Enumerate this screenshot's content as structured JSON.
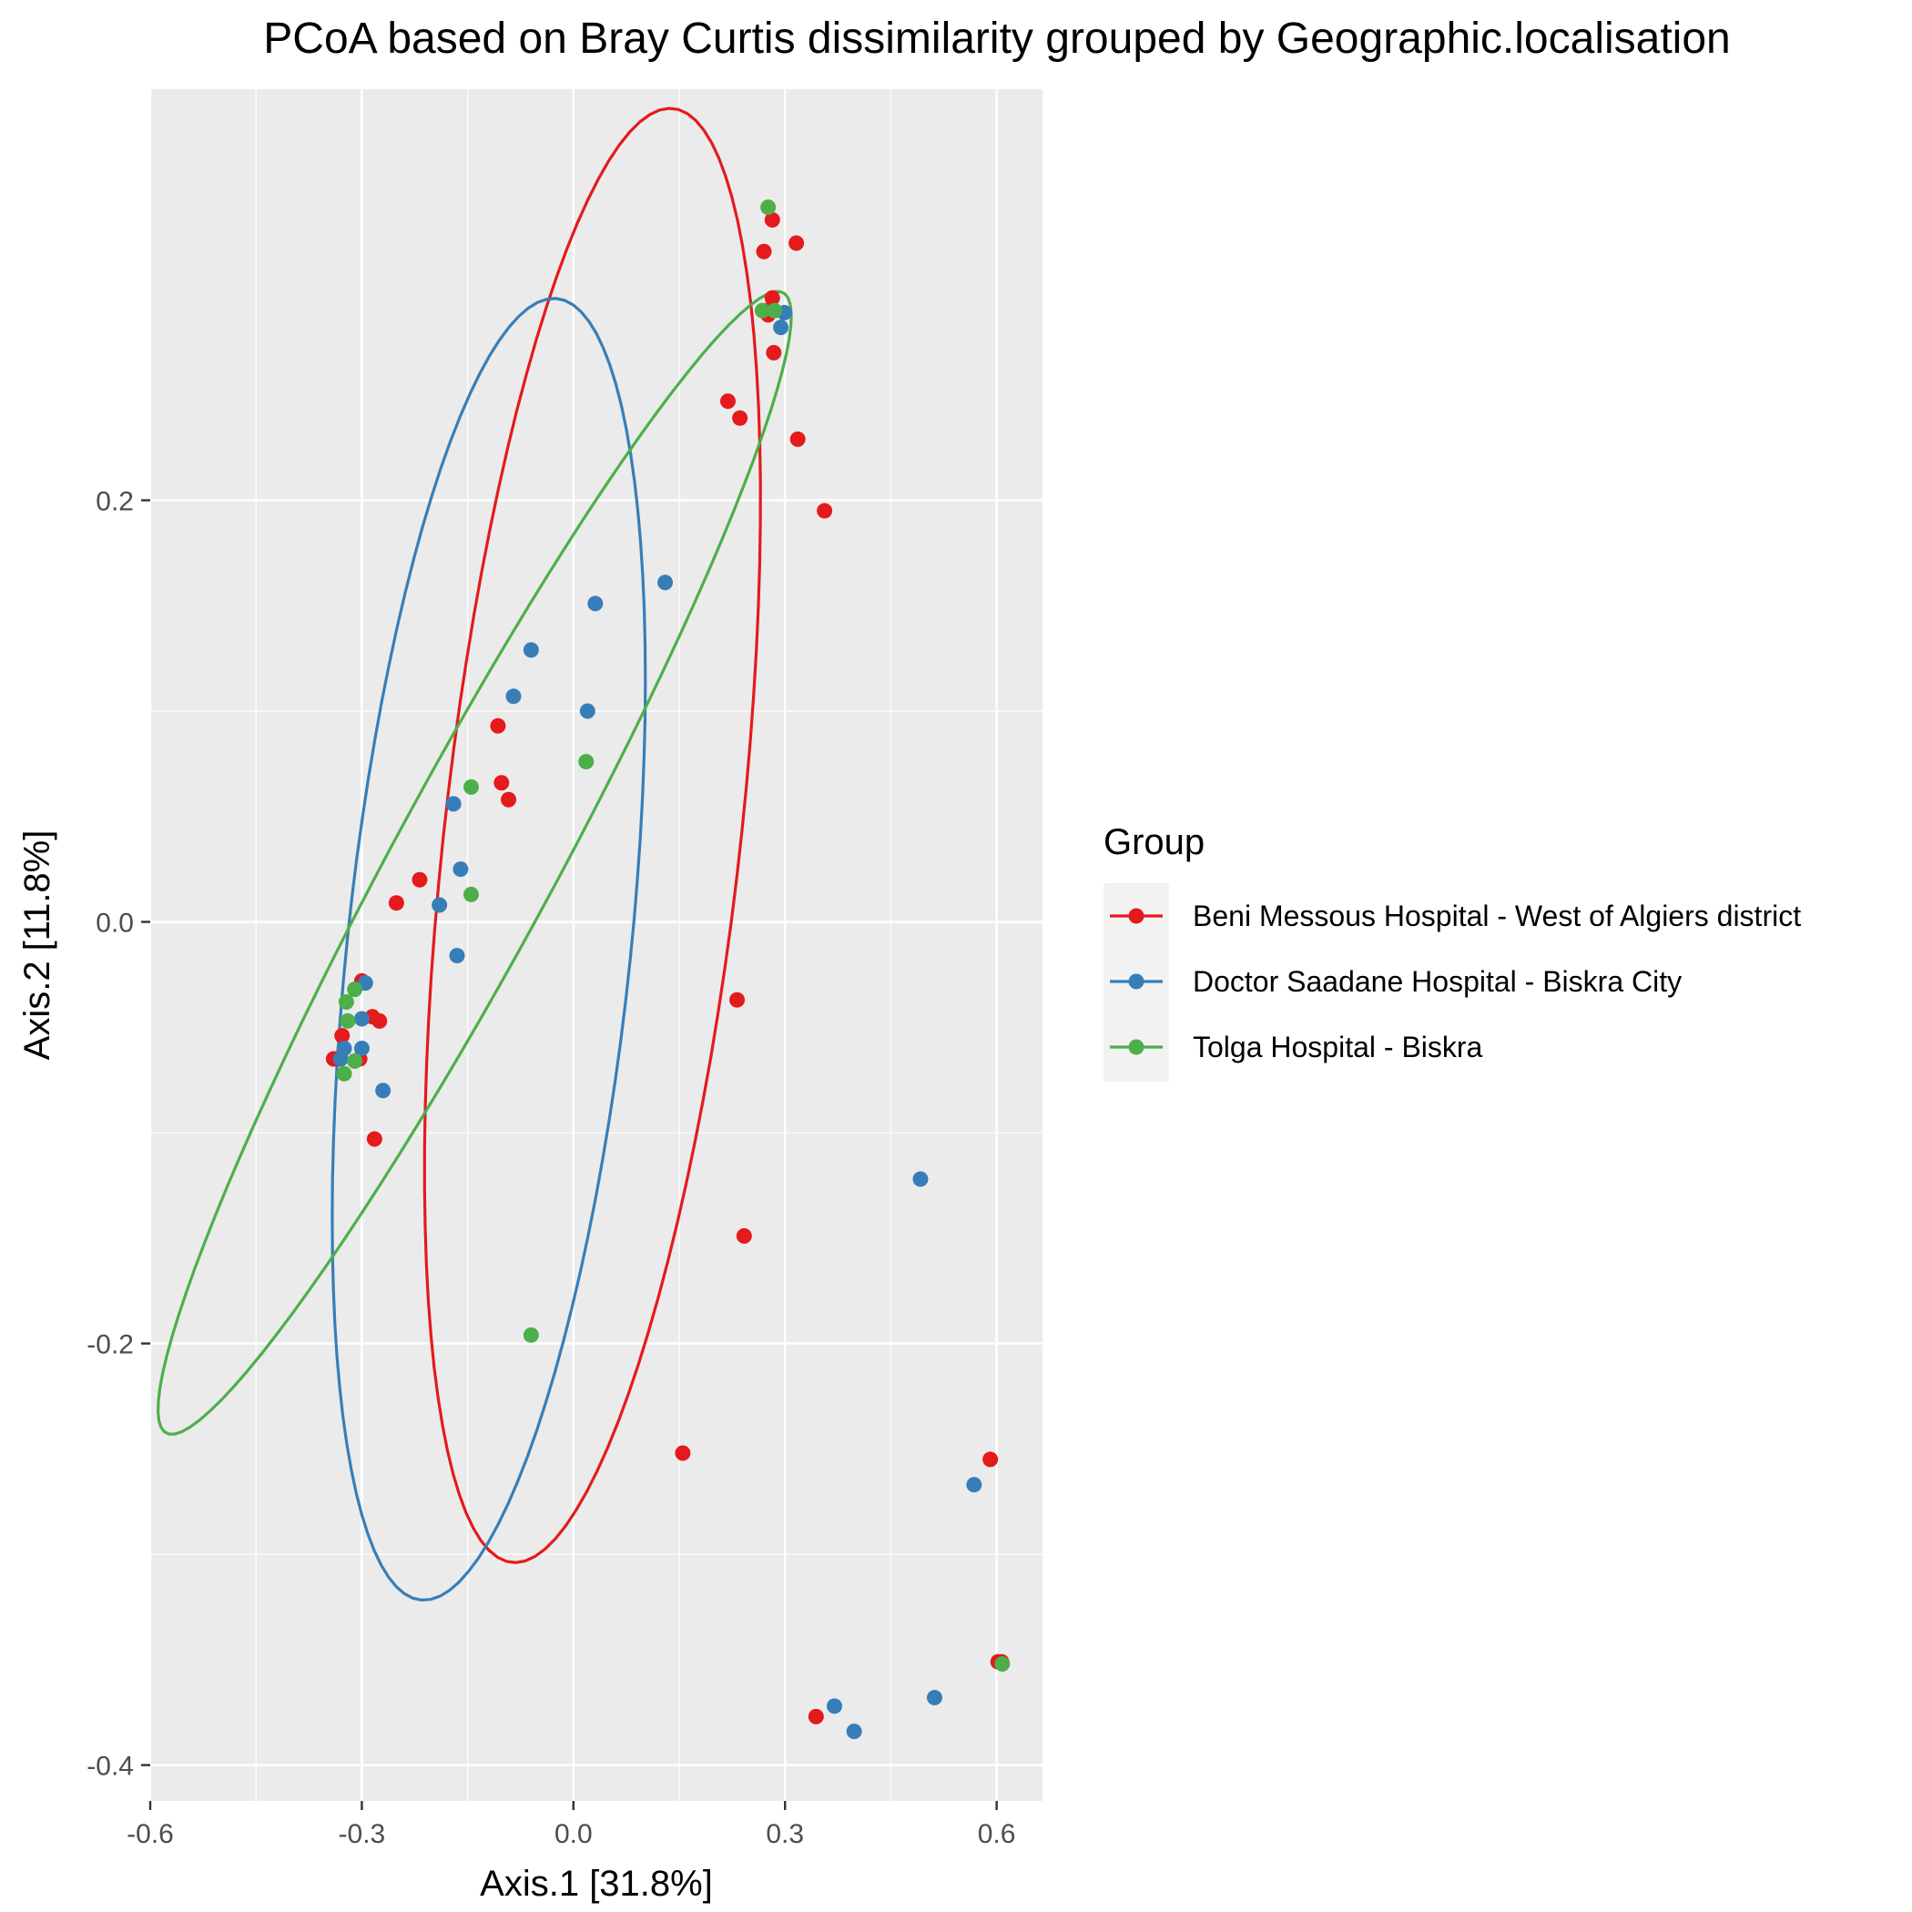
{
  "chart_data": {
    "type": "scatter",
    "title": "PCoA based on Bray Curtis dissimilarity grouped by Geographic.localisation",
    "xlabel": "Axis.1   [31.8%]",
    "ylabel": "Axis.2   [11.8%]",
    "xlim": [
      -0.6,
      0.665
    ],
    "ylim": [
      -0.417,
      0.395
    ],
    "x_ticks": [
      -0.6,
      -0.3,
      0.0,
      0.3,
      0.6
    ],
    "x_tick_labels": [
      "-0.6",
      "-0.3",
      "0.0",
      "0.3",
      "0.6"
    ],
    "y_ticks": [
      -0.4,
      -0.2,
      0.0,
      0.2
    ],
    "y_tick_labels": [
      "-0.4",
      "-0.2",
      "0.0",
      "0.2"
    ],
    "grid": true,
    "panel_background": "#ebebeb",
    "legend": {
      "title": "Group",
      "position": "right"
    },
    "series": [
      {
        "name": "Beni Messous Hospital - West of Algiers district",
        "color": "#e41a1c",
        "points": [
          [
            0.282,
            0.333
          ],
          [
            0.316,
            0.322
          ],
          [
            0.27,
            0.318
          ],
          [
            0.282,
            0.296
          ],
          [
            0.276,
            0.288
          ],
          [
            0.274,
            0.29
          ],
          [
            0.284,
            0.27
          ],
          [
            0.219,
            0.247
          ],
          [
            0.236,
            0.239
          ],
          [
            0.318,
            0.229
          ],
          [
            0.356,
            0.195
          ],
          [
            -0.107,
            0.093
          ],
          [
            -0.102,
            0.066
          ],
          [
            -0.092,
            0.058
          ],
          [
            -0.218,
            0.02
          ],
          [
            -0.251,
            0.009
          ],
          [
            0.232,
            -0.037
          ],
          [
            -0.3,
            -0.028
          ],
          [
            -0.285,
            -0.045
          ],
          [
            -0.275,
            -0.047
          ],
          [
            -0.328,
            -0.054
          ],
          [
            -0.303,
            -0.065
          ],
          [
            -0.34,
            -0.065
          ],
          [
            -0.334,
            -0.065
          ],
          [
            -0.282,
            -0.103
          ],
          [
            0.242,
            -0.149
          ],
          [
            0.155,
            -0.252
          ],
          [
            0.591,
            -0.255
          ],
          [
            0.602,
            -0.351
          ],
          [
            0.607,
            -0.351
          ],
          [
            0.344,
            -0.377
          ]
        ]
      },
      {
        "name": "Doctor Saadane Hospital - Biskra City",
        "color": "#377eb8",
        "points": [
          [
            0.299,
            0.289
          ],
          [
            0.294,
            0.282
          ],
          [
            0.13,
            0.161
          ],
          [
            0.031,
            0.151
          ],
          [
            -0.06,
            0.129
          ],
          [
            -0.085,
            0.107
          ],
          [
            0.02,
            0.1
          ],
          [
            -0.17,
            0.056
          ],
          [
            -0.16,
            0.025
          ],
          [
            -0.19,
            0.008
          ],
          [
            -0.165,
            -0.016
          ],
          [
            -0.295,
            -0.029
          ],
          [
            -0.3,
            -0.046
          ],
          [
            -0.325,
            -0.06
          ],
          [
            -0.3,
            -0.06
          ],
          [
            -0.33,
            -0.065
          ],
          [
            -0.27,
            -0.08
          ],
          [
            0.492,
            -0.122
          ],
          [
            0.568,
            -0.267
          ],
          [
            0.512,
            -0.368
          ],
          [
            0.37,
            -0.372
          ],
          [
            0.398,
            -0.384
          ]
        ]
      },
      {
        "name": "Tolga Hospital - Biskra",
        "color": "#4daf4a",
        "points": [
          [
            0.276,
            0.339
          ],
          [
            0.268,
            0.29
          ],
          [
            0.285,
            0.29
          ],
          [
            0.018,
            0.076
          ],
          [
            -0.145,
            0.064
          ],
          [
            -0.145,
            0.013
          ],
          [
            -0.31,
            -0.032
          ],
          [
            -0.322,
            -0.038
          ],
          [
            -0.32,
            -0.047
          ],
          [
            -0.31,
            -0.066
          ],
          [
            -0.325,
            -0.072
          ],
          [
            -0.06,
            -0.196
          ],
          [
            0.608,
            -0.352
          ]
        ]
      }
    ],
    "ellipses": [
      {
        "group": "Beni Messous Hospital - West of Algiers district",
        "color": "#e41a1c",
        "center": [
          0.027,
          0.041
        ],
        "rx": 0.37,
        "ry": 0.197,
        "rotation_deg": 64.7
      },
      {
        "group": "Doctor Saadane Hospital - Biskra City",
        "color": "#377eb8",
        "center": [
          -0.12,
          -0.013
        ],
        "rx": 0.33,
        "ry": 0.189,
        "rotation_deg": 64.5
      },
      {
        "group": "Tolga Hospital - Biskra",
        "color": "#4daf4a",
        "center": [
          -0.14,
          0.028
        ],
        "rx": 0.52,
        "ry": 0.068,
        "rotation_deg": 30.6
      }
    ]
  }
}
